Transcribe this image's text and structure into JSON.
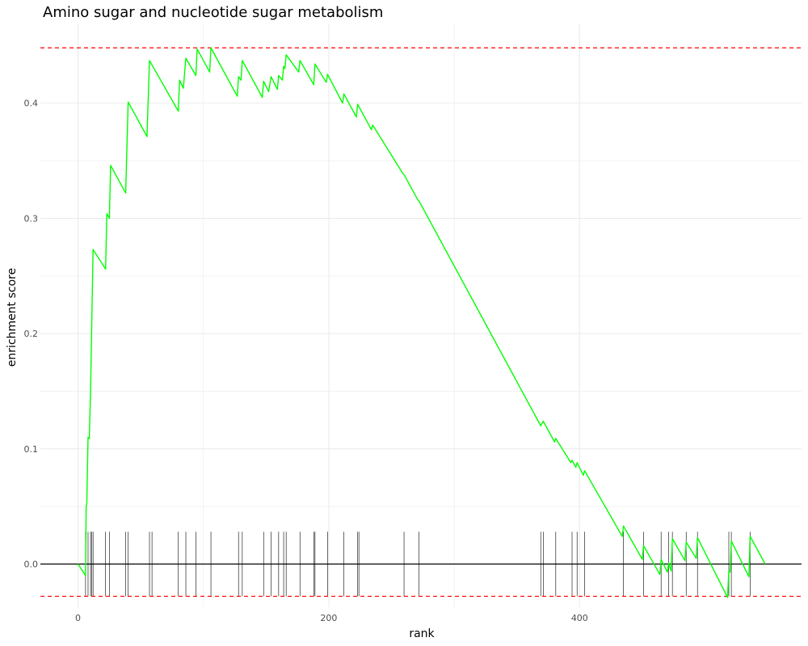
{
  "chart_data": {
    "type": "line",
    "title": "Amino sugar and nucleotide sugar metabolism",
    "xlabel": "rank",
    "ylabel": "enrichment score",
    "xlim": [
      -30,
      577
    ],
    "ylim": [
      -0.0375,
      0.4685
    ],
    "x_ticks": [
      0,
      200,
      400
    ],
    "x_tick_labels": [
      "0",
      "200",
      "400"
    ],
    "y_ticks": [
      0.0,
      0.1,
      0.2,
      0.3,
      0.4
    ],
    "y_tick_labels": [
      "0.0",
      "0.1",
      "0.2",
      "0.3",
      "0.4"
    ],
    "grid": true,
    "colors": {
      "curve": "#00ff00",
      "threshold": "#ff0000",
      "zero_line": "#000000",
      "hits": "#000000",
      "grid": "#ebebeb"
    },
    "max_es": 0.448,
    "min_es": -0.028,
    "hit_rug_top": 0.028,
    "series": [
      {
        "values": [
          [
            0,
            0.0
          ],
          [
            6,
            -0.01
          ],
          [
            6.5,
            0.05
          ],
          [
            7,
            0.052
          ],
          [
            8,
            0.11
          ],
          [
            9,
            0.109
          ],
          [
            10,
            0.15
          ],
          [
            12,
            0.273
          ],
          [
            22,
            0.256
          ],
          [
            23,
            0.304
          ],
          [
            25,
            0.3
          ],
          [
            26,
            0.346
          ],
          [
            38,
            0.322
          ],
          [
            40,
            0.401
          ],
          [
            55,
            0.371
          ],
          [
            57,
            0.437
          ],
          [
            80,
            0.393
          ],
          [
            81,
            0.42
          ],
          [
            84,
            0.413
          ],
          [
            86,
            0.439
          ],
          [
            94,
            0.424
          ],
          [
            95,
            0.447
          ],
          [
            105,
            0.427
          ],
          [
            106,
            0.448
          ],
          [
            127,
            0.406
          ],
          [
            128,
            0.423
          ],
          [
            130,
            0.42
          ],
          [
            131,
            0.437
          ],
          [
            147,
            0.405
          ],
          [
            148,
            0.419
          ],
          [
            152,
            0.41
          ],
          [
            154,
            0.423
          ],
          [
            159,
            0.412
          ],
          [
            160,
            0.424
          ],
          [
            163,
            0.42
          ],
          [
            164,
            0.432
          ],
          [
            165,
            0.43
          ],
          [
            166,
            0.442
          ],
          [
            176,
            0.427
          ],
          [
            177,
            0.437
          ],
          [
            188,
            0.416
          ],
          [
            189,
            0.434
          ],
          [
            198,
            0.418
          ],
          [
            199,
            0.425
          ],
          [
            211,
            0.4
          ],
          [
            212,
            0.408
          ],
          [
            222,
            0.388
          ],
          [
            223,
            0.399
          ],
          [
            234,
            0.377
          ],
          [
            235,
            0.381
          ],
          [
            259,
            0.339
          ],
          [
            260,
            0.338
          ],
          [
            271,
            0.316
          ],
          [
            272,
            0.315
          ],
          [
            369,
            0.12
          ],
          [
            371,
            0.124
          ],
          [
            380,
            0.106
          ],
          [
            381,
            0.109
          ],
          [
            393,
            0.088
          ],
          [
            394,
            0.09
          ],
          [
            397,
            0.084
          ],
          [
            398,
            0.088
          ],
          [
            403,
            0.077
          ],
          [
            404,
            0.081
          ],
          [
            434,
            0.024
          ],
          [
            435,
            0.033
          ],
          [
            450,
            0.004
          ],
          [
            451,
            0.016
          ],
          [
            464,
            -0.009
          ],
          [
            465,
            0.004
          ],
          [
            470,
            -0.007
          ],
          [
            471,
            0.001
          ],
          [
            473,
            -0.006
          ],
          [
            474,
            0.022
          ],
          [
            484,
            0.003
          ],
          [
            485,
            0.019
          ],
          [
            493,
            0.005
          ],
          [
            494,
            0.023
          ],
          [
            518,
            -0.029
          ],
          [
            519,
            -0.006
          ],
          [
            520,
            -0.007
          ],
          [
            521,
            0.02
          ],
          [
            535,
            -0.011
          ],
          [
            536,
            0.024
          ],
          [
            548,
            0.0
          ]
        ]
      }
    ],
    "hit_ranks": [
      6,
      8,
      10,
      11,
      12,
      22,
      25,
      38,
      40,
      57,
      59,
      80,
      86,
      94,
      106,
      128,
      131,
      148,
      154,
      160,
      164,
      166,
      177,
      188,
      189,
      199,
      212,
      223,
      224,
      260,
      272,
      369,
      371,
      381,
      394,
      398,
      404,
      435,
      451,
      465,
      471,
      474,
      485,
      494,
      519,
      521,
      536
    ]
  }
}
